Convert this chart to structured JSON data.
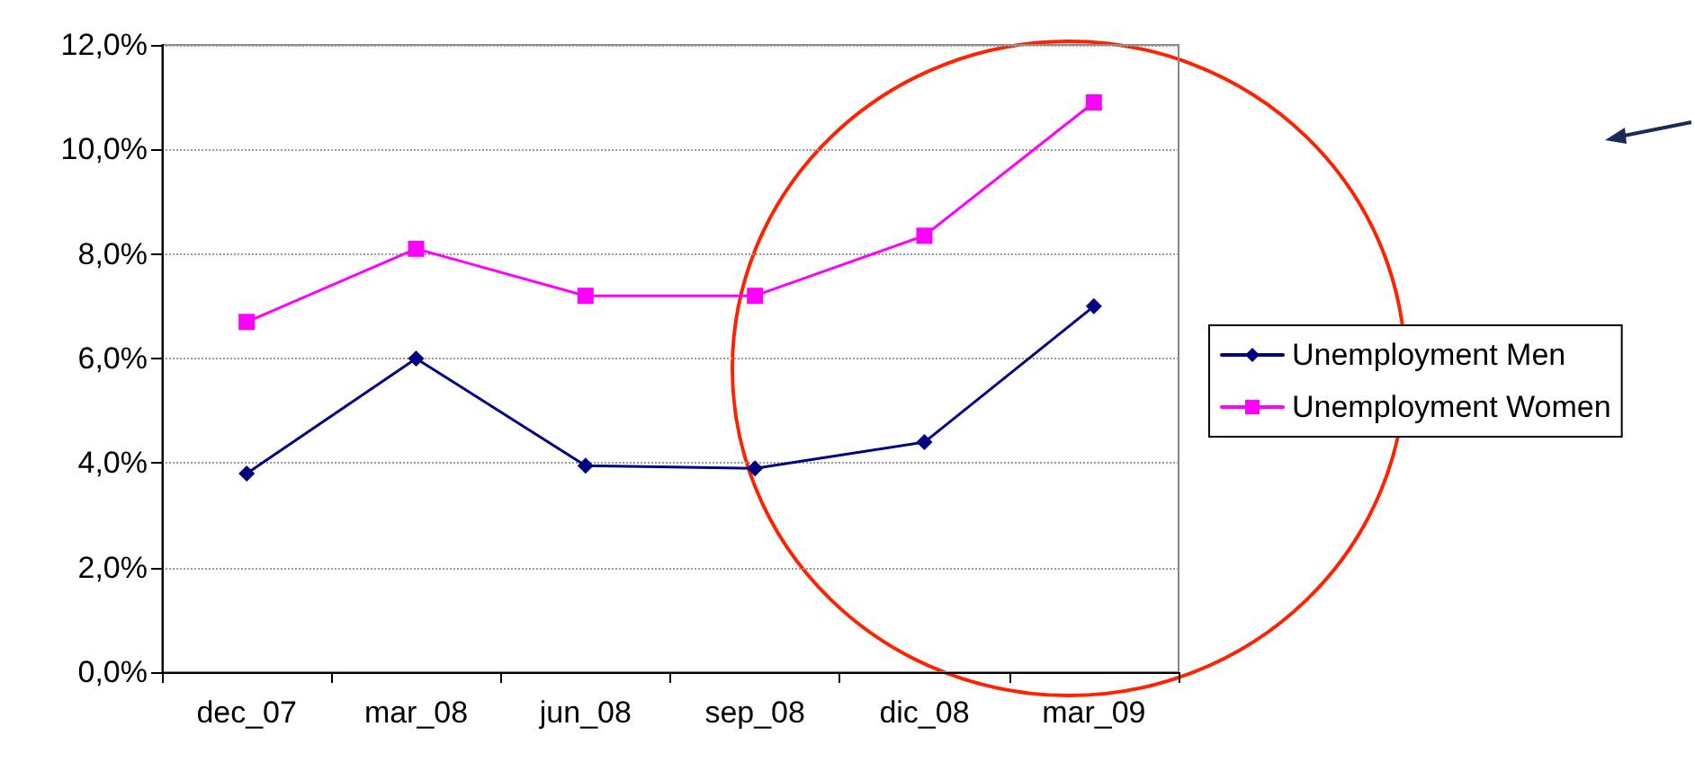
{
  "chart_data": {
    "type": "line",
    "categories": [
      "dec_07",
      "mar_08",
      "jun_08",
      "sep_08",
      "dic_08",
      "mar_09"
    ],
    "series": [
      {
        "name": "Unemployment Men",
        "color": "#000080",
        "marker": "diamond",
        "values": [
          3.8,
          6.0,
          3.95,
          3.9,
          4.4,
          7.0
        ]
      },
      {
        "name": "Unemployment Women",
        "color": "#ff00ff",
        "marker": "square",
        "values": [
          6.7,
          8.1,
          7.2,
          7.2,
          8.35,
          10.9
        ]
      }
    ],
    "ylim": [
      0,
      12
    ],
    "yticks": [
      {
        "value": 0,
        "label": "0,0%"
      },
      {
        "value": 2,
        "label": "2,0%"
      },
      {
        "value": 4,
        "label": "4,0%"
      },
      {
        "value": 6,
        "label": "6,0%"
      },
      {
        "value": 8,
        "label": "8,0%"
      },
      {
        "value": 10,
        "label": "10,0%"
      },
      {
        "value": 12,
        "label": "12,0%"
      }
    ],
    "grid": "y",
    "legend": "right",
    "line_style": "solid"
  }
}
